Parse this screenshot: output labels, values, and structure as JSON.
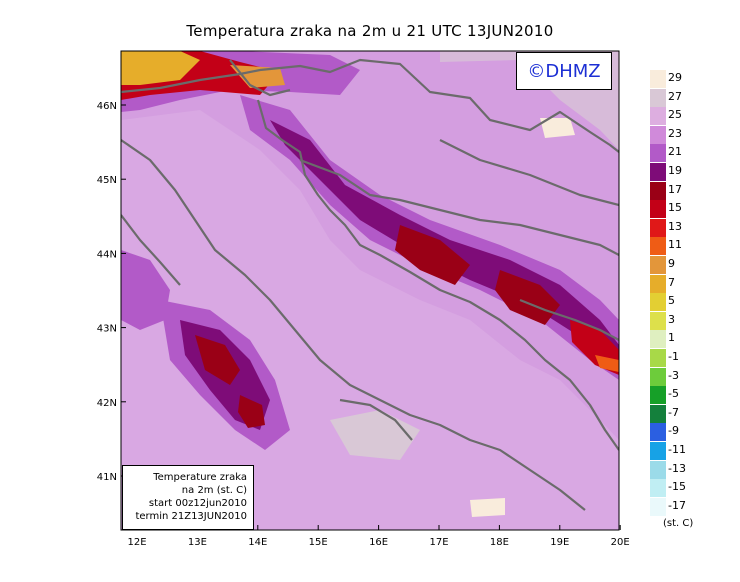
{
  "title": "Temperatura zraka na 2m u 21 UTC 13JUN2010",
  "watermark": "©DHMZ",
  "info": {
    "line1": "Temperature zraka",
    "line2": "na 2m (st. C)",
    "line3": "start 00z12jun2010",
    "line4": "termin 21Z13JUN2010"
  },
  "axes": {
    "lon_labels": [
      "12E",
      "13E",
      "14E",
      "15E",
      "16E",
      "17E",
      "18E",
      "19E",
      "20E"
    ],
    "lat_labels": [
      "46N",
      "45N",
      "44N",
      "43N",
      "42N",
      "41N"
    ]
  },
  "legend": {
    "units": "(st. C)",
    "labels": [
      "29",
      "27",
      "25",
      "23",
      "21",
      "19",
      "17",
      "15",
      "13",
      "11",
      "9",
      "7",
      "5",
      "3",
      "1",
      "-1",
      "-3",
      "-5",
      "-7",
      "-9",
      "-11",
      "-13",
      "-15",
      "-17"
    ],
    "colors": [
      "#f9ecdc",
      "#d9c8d6",
      "#ddaee0",
      "#d08ada",
      "#b25ac8",
      "#7e0c78",
      "#9a0016",
      "#c30017",
      "#e01818",
      "#ef5c15",
      "#e3963a",
      "#e6ad2a",
      "#e3cf33",
      "#dde04b",
      "#dfefc0",
      "#a8d948",
      "#6dcc3b",
      "#16a028",
      "#14803c",
      "#2b5fe1",
      "#17a2e6",
      "#9bdbe9",
      "#c0eef3",
      "#eaf9fb"
    ]
  },
  "colors": {
    "background": "#d49ee0",
    "coastline": "#6b6b6b"
  }
}
